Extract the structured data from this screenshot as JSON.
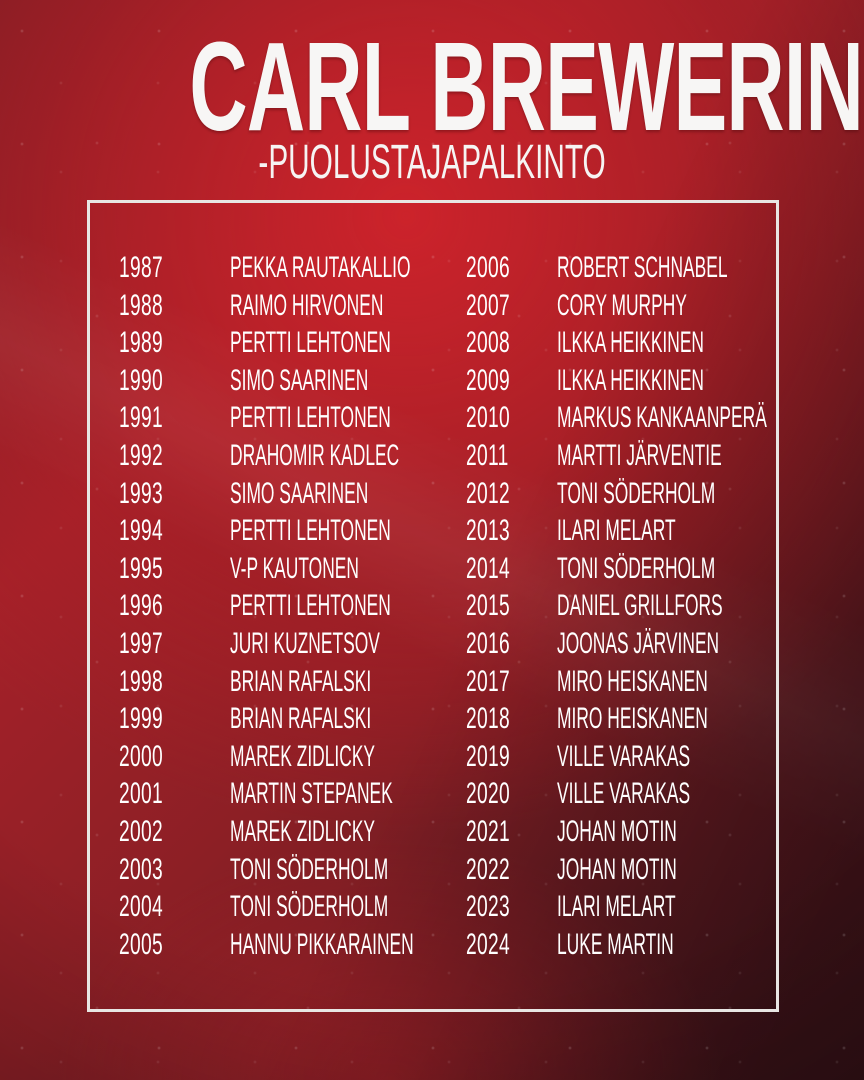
{
  "title": "CARL BREWERIN",
  "subtitle": "-PUOLUSTAJAPALKINTO",
  "colors": {
    "background_bright_red": "#c0232a",
    "background_dark_edge": "#3d151a",
    "text": "#ffffff",
    "title_text": "#f7f6f5",
    "box_border": "#e8e6e3"
  },
  "awards": {
    "left": [
      {
        "year": "1987",
        "name": "PEKKA RAUTAKALLIO"
      },
      {
        "year": "1988",
        "name": "RAIMO HIRVONEN"
      },
      {
        "year": "1989",
        "name": "PERTTI LEHTONEN"
      },
      {
        "year": "1990",
        "name": "SIMO SAARINEN"
      },
      {
        "year": "1991",
        "name": "PERTTI LEHTONEN"
      },
      {
        "year": "1992",
        "name": "DRAHOMIR KADLEC"
      },
      {
        "year": "1993",
        "name": "SIMO SAARINEN"
      },
      {
        "year": "1994",
        "name": "PERTTI LEHTONEN"
      },
      {
        "year": "1995",
        "name": "V-P KAUTONEN"
      },
      {
        "year": "1996",
        "name": "PERTTI LEHTONEN"
      },
      {
        "year": "1997",
        "name": "JURI KUZNETSOV"
      },
      {
        "year": "1998",
        "name": "BRIAN RAFALSKI"
      },
      {
        "year": "1999",
        "name": "BRIAN RAFALSKI"
      },
      {
        "year": "2000",
        "name": "MAREK ZIDLICKY"
      },
      {
        "year": "2001",
        "name": "MARTIN STEPANEK"
      },
      {
        "year": "2002",
        "name": "MAREK ZIDLICKY"
      },
      {
        "year": "2003",
        "name": "TONI SÖDERHOLM"
      },
      {
        "year": "2004",
        "name": "TONI SÖDERHOLM"
      },
      {
        "year": "2005",
        "name": "HANNU PIKKARAINEN"
      }
    ],
    "right": [
      {
        "year": "2006",
        "name": "ROBERT SCHNABEL"
      },
      {
        "year": "2007",
        "name": "CORY MURPHY"
      },
      {
        "year": "2008",
        "name": "ILKKA HEIKKINEN"
      },
      {
        "year": "2009",
        "name": "ILKKA HEIKKINEN"
      },
      {
        "year": "2010",
        "name": "MARKUS KANKAANPERÄ"
      },
      {
        "year": "2011",
        "name": "MARTTI JÄRVENTIE"
      },
      {
        "year": "2012",
        "name": "TONI SÖDERHOLM"
      },
      {
        "year": "2013",
        "name": "ILARI MELART"
      },
      {
        "year": "2014",
        "name": "TONI SÖDERHOLM"
      },
      {
        "year": "2015",
        "name": "DANIEL GRILLFORS"
      },
      {
        "year": "2016",
        "name": "JOONAS JÄRVINEN"
      },
      {
        "year": "2017",
        "name": "MIRO HEISKANEN"
      },
      {
        "year": "2018",
        "name": "MIRO HEISKANEN"
      },
      {
        "year": "2019",
        "name": "VILLE VARAKAS"
      },
      {
        "year": "2020",
        "name": "VILLE VARAKAS"
      },
      {
        "year": "2021",
        "name": "JOHAN MOTIN"
      },
      {
        "year": "2022",
        "name": "JOHAN MOTIN"
      },
      {
        "year": "2023",
        "name": "ILARI MELART"
      },
      {
        "year": "2024",
        "name": "LUKE MARTIN"
      }
    ]
  }
}
